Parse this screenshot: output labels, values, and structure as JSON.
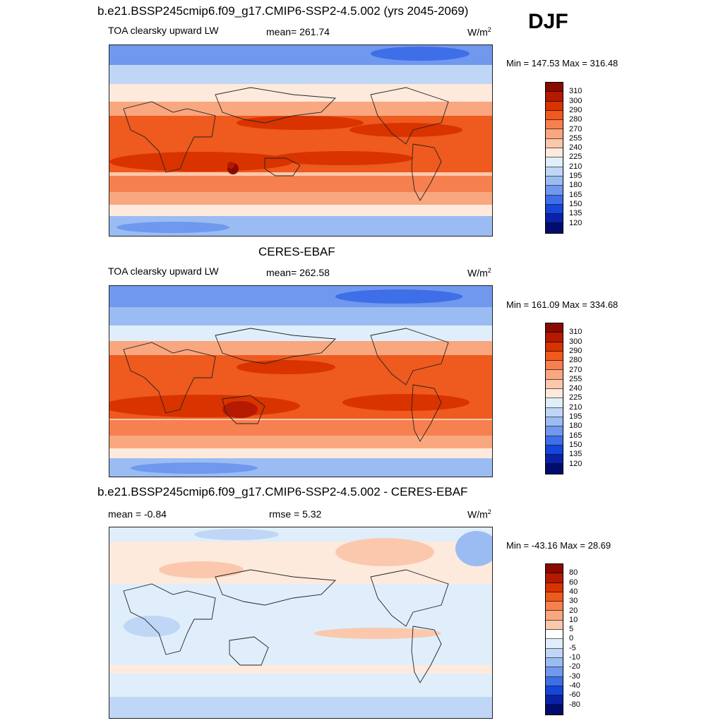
{
  "season": "DJF",
  "units_base": "W/m",
  "units_exp": "2",
  "panel1": {
    "title": "b.e21.BSSP245cmip6.f09_g17.CMIP6-SSP2-4.5.002 (yrs 2045-2069)",
    "variable": "TOA clearsky upward LW",
    "mean": "mean= 261.74",
    "minmax": "Min = 147.53 Max = 316.48"
  },
  "panel2": {
    "title": "CERES-EBAF",
    "variable": "TOA clearsky upward LW",
    "mean": "mean= 262.58",
    "minmax": "Min = 161.09 Max = 334.68"
  },
  "panel3": {
    "title": "b.e21.BSSP245cmip6.f09_g17.CMIP6-SSP2-4.5.002 - CERES-EBAF",
    "mean": "mean =  -0.84",
    "rmse": "rmse =   5.32",
    "minmax": "Min = -43.16 Max =  28.69"
  },
  "colorbar_abs": {
    "labels": [
      "310",
      "300",
      "290",
      "280",
      "270",
      "255",
      "240",
      "225",
      "210",
      "195",
      "180",
      "165",
      "150",
      "135",
      "120"
    ],
    "colors": [
      "#8b0a00",
      "#b51a00",
      "#d93300",
      "#ef5a1e",
      "#f6804f",
      "#f9a77f",
      "#fbc8ad",
      "#feeadc",
      "#dfeefa",
      "#bfd6f6",
      "#9bbcf3",
      "#6f98ee",
      "#3e6ee8",
      "#1546d8",
      "#0a22a8",
      "#000d6e"
    ]
  },
  "colorbar_diff": {
    "labels": [
      "80",
      "60",
      "40",
      "30",
      "20",
      "10",
      "5",
      "0",
      "-5",
      "-10",
      "-20",
      "-30",
      "-40",
      "-60",
      "-80"
    ],
    "colors": [
      "#8b0a00",
      "#b51a00",
      "#d93300",
      "#ef5a1e",
      "#f6804f",
      "#f9a77f",
      "#fbc8ad",
      "#ffffff",
      "#dfeefa",
      "#bfd6f6",
      "#9bbcf3",
      "#6f98ee",
      "#3e6ee8",
      "#1546d8",
      "#0a22a8",
      "#000d6e"
    ]
  }
}
